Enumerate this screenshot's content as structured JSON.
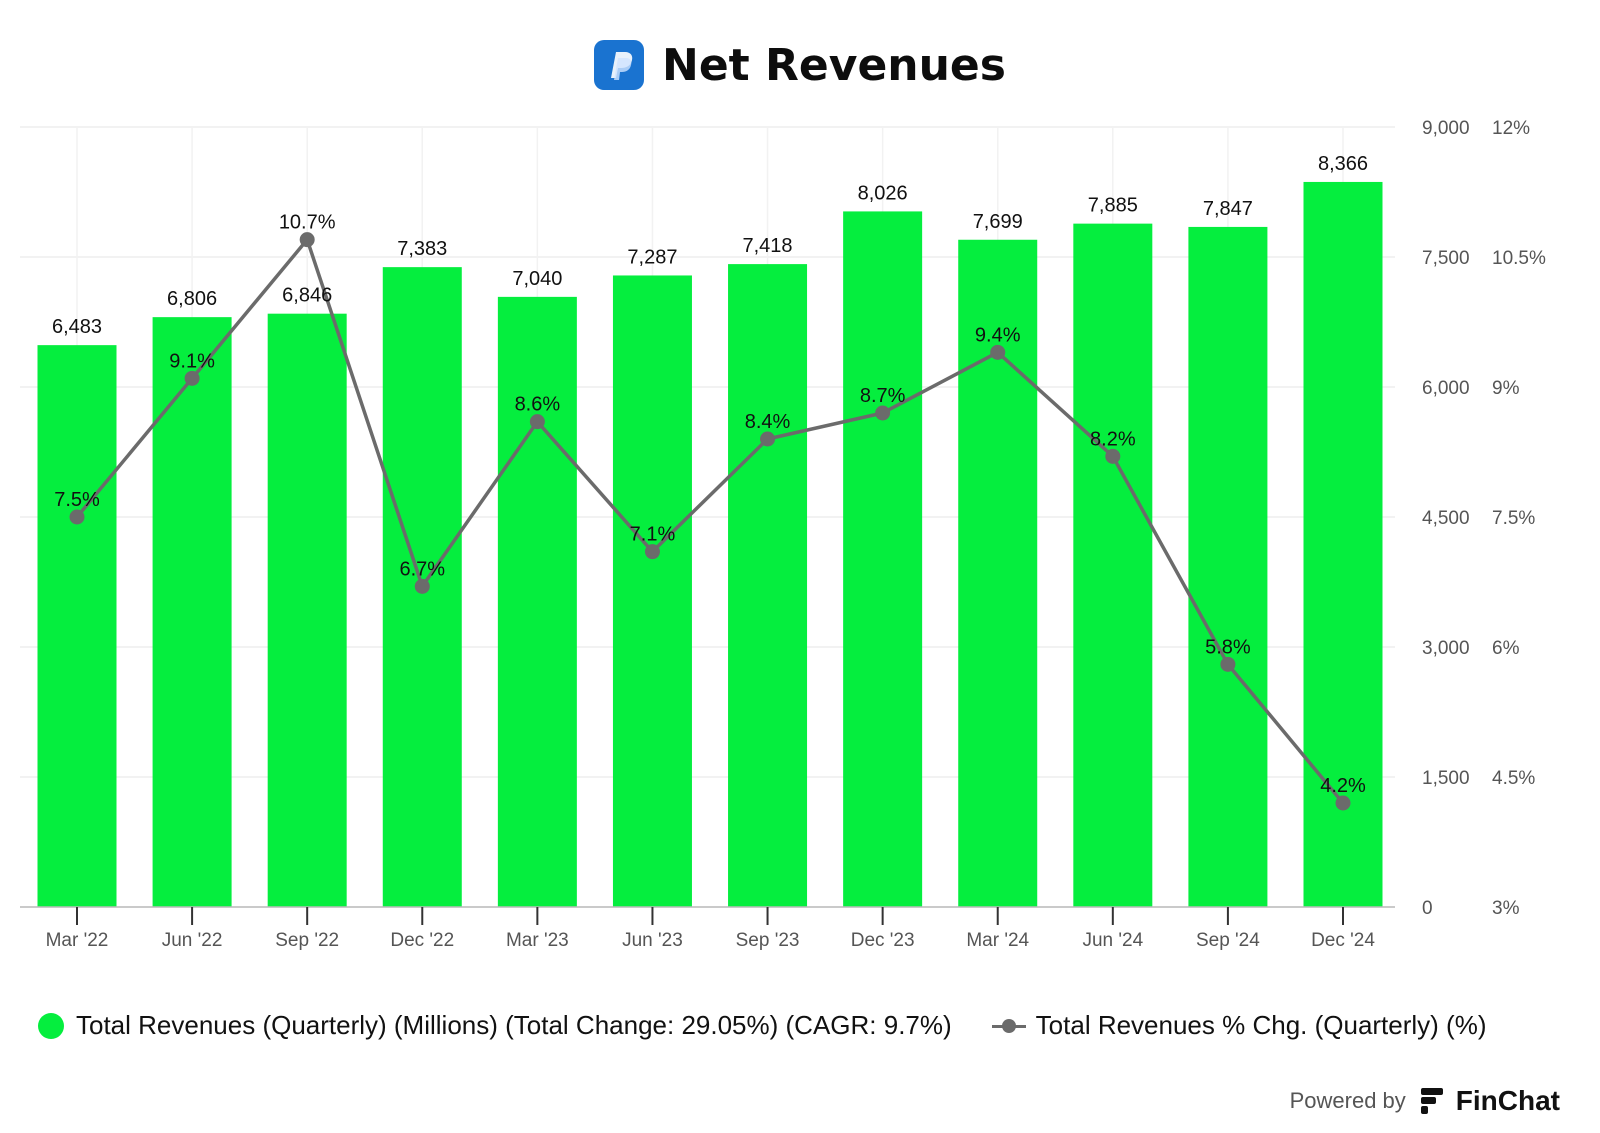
{
  "title": "Net Revenues",
  "colors": {
    "bar": "#05ee3e",
    "line": "#6b6b6b",
    "grid": "#eeeeee",
    "logo": "#1a73d0"
  },
  "chart_data": {
    "type": "bar",
    "categories": [
      "Mar '22",
      "Jun '22",
      "Sep '22",
      "Dec '22",
      "Mar '23",
      "Jun '23",
      "Sep '23",
      "Dec '23",
      "Mar '24",
      "Jun '24",
      "Sep '24",
      "Dec '24"
    ],
    "series": [
      {
        "name": "Total Revenues (Quarterly) (Millions) (Total Change: 29.05%) (CAGR: 9.7%)",
        "type": "bar",
        "axis": "left",
        "values": [
          6483,
          6806,
          6846,
          7383,
          7040,
          7287,
          7418,
          8026,
          7699,
          7885,
          7847,
          8366
        ],
        "labels": [
          "6,483",
          "6,806",
          "6,846",
          "7,383",
          "7,040",
          "7,287",
          "7,418",
          "8,026",
          "7,699",
          "7,885",
          "7,847",
          "8,366"
        ]
      },
      {
        "name": "Total Revenues % Chg. (Quarterly) (%)",
        "type": "line",
        "axis": "right",
        "values": [
          7.5,
          9.1,
          10.7,
          6.7,
          8.6,
          7.1,
          8.4,
          8.7,
          9.4,
          8.2,
          5.8,
          4.2
        ],
        "labels": [
          "7.5%",
          "9.1%",
          "10.7%",
          "6.7%",
          "8.6%",
          "7.1%",
          "8.4%",
          "8.7%",
          "9.4%",
          "8.2%",
          "5.8%",
          "4.2%"
        ]
      }
    ],
    "y_left": {
      "range": [
        0,
        9000
      ],
      "ticks": [
        0,
        1500,
        3000,
        4500,
        6000,
        7500,
        9000
      ],
      "tick_labels": [
        "0",
        "1,500",
        "3,000",
        "4,500",
        "6,000",
        "7,500",
        "9,000"
      ]
    },
    "y_right": {
      "range": [
        3,
        12
      ],
      "ticks": [
        3,
        4.5,
        6,
        7.5,
        9,
        10.5,
        12
      ],
      "tick_labels": [
        "3%",
        "4.5%",
        "6%",
        "7.5%",
        "9%",
        "10.5%",
        "12%"
      ]
    },
    "grid": true,
    "legend": "bottom"
  },
  "legend": {
    "bar_label": "Total Revenues (Quarterly) (Millions) (Total Change: 29.05%) (CAGR: 9.7%)",
    "line_label": "Total Revenues % Chg. (Quarterly) (%)"
  },
  "footer": {
    "powered_by": "Powered by",
    "brand": "FinChat"
  }
}
